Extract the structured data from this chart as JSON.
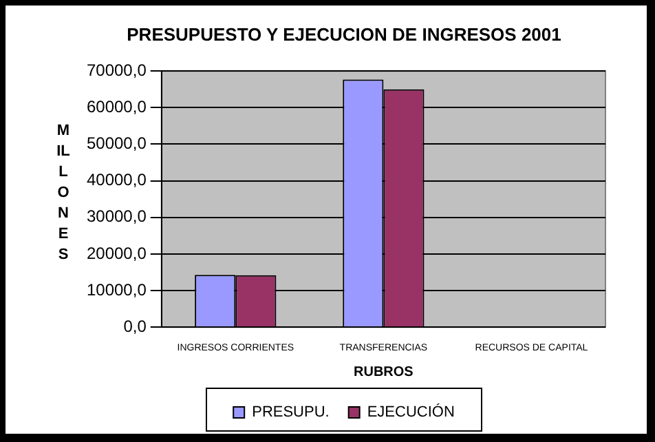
{
  "chart_data": {
    "type": "bar",
    "title": "PRESUPUESTO Y EJECUCION DE INGRESOS 2001",
    "xlabel": "RUBROS",
    "ylabel": "MILLONES",
    "categories": [
      "INGRESOS CORRIENTES",
      "TRANSFERENCIAS",
      "RECURSOS DE CAPITAL"
    ],
    "series": [
      {
        "name": "PRESUPU.",
        "color": "#9999ff",
        "values": [
          14300,
          67700,
          null
        ]
      },
      {
        "name": "EJECUCIÓN",
        "color": "#993366",
        "values": [
          14200,
          65000,
          null
        ]
      }
    ],
    "ylim": [
      0,
      70000
    ],
    "yticks": [
      {
        "value": 0,
        "label": "0,0"
      },
      {
        "value": 10000,
        "label": "10000,0"
      },
      {
        "value": 20000,
        "label": "20000,0"
      },
      {
        "value": 30000,
        "label": "30000,0"
      },
      {
        "value": 40000,
        "label": "40000,0"
      },
      {
        "value": 50000,
        "label": "50000,0"
      },
      {
        "value": 60000,
        "label": "60000,0"
      },
      {
        "value": 70000,
        "label": "70000,0"
      }
    ],
    "grid": "y",
    "legend": "bottom"
  }
}
